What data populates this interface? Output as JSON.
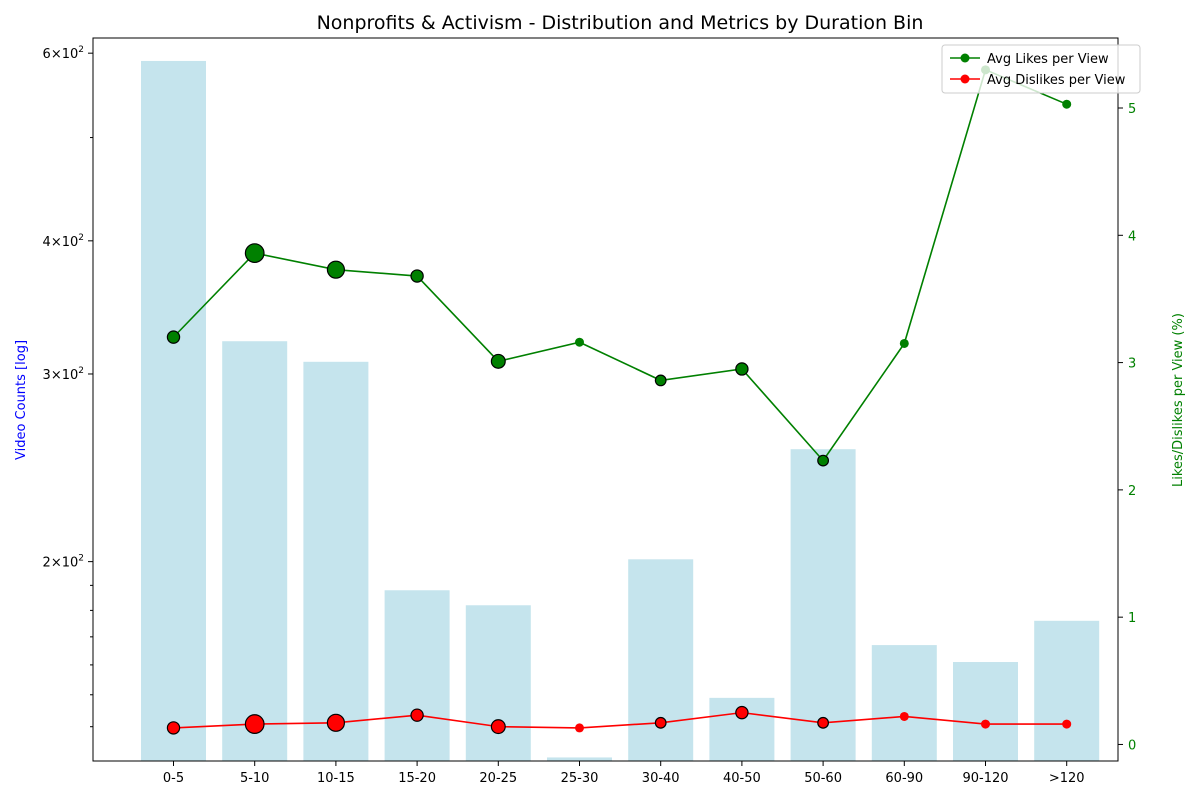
{
  "chart_data": {
    "type": "bar+line",
    "title": "Nonprofits & Activism - Distribution and Metrics by Duration Bin",
    "categories": [
      "0-5",
      "5-10",
      "10-15",
      "15-20",
      "20-25",
      "25-30",
      "30-40",
      "40-50",
      "50-60",
      "60-90",
      "90-120",
      ">120"
    ],
    "bars": {
      "name": "Video Counts",
      "values": [
        590,
        322,
        308,
        188,
        182,
        131,
        201,
        149,
        255,
        167,
        161,
        176
      ],
      "color": "#add8e6",
      "axis": "left",
      "scale": "log"
    },
    "series": [
      {
        "name": "Avg Likes per View",
        "values": [
          3.2,
          3.86,
          3.73,
          3.68,
          3.01,
          3.16,
          2.86,
          2.95,
          2.23,
          3.15,
          5.3,
          5.03
        ],
        "marker_emphasis": [
          1,
          3,
          2.5,
          1,
          1.5,
          0,
          0.5,
          1,
          0.5,
          0,
          0,
          0
        ],
        "color": "#008000",
        "axis": "right"
      },
      {
        "name": "Avg Dislikes per View",
        "values": [
          0.13,
          0.16,
          0.17,
          0.23,
          0.14,
          0.13,
          0.17,
          0.25,
          0.17,
          0.22,
          0.16,
          0.16
        ],
        "marker_emphasis": [
          1,
          3,
          2.5,
          1,
          1.5,
          0,
          0.5,
          1,
          0.5,
          0,
          0,
          0
        ],
        "color": "#ff0000",
        "axis": "right"
      }
    ],
    "ylabel_left": "Video Counts [log]",
    "ylabel_right": "Likes/Dislikes per View (%)",
    "ylim_left": [
      130,
      620
    ],
    "ylim_right": [
      -0.13,
      5.55
    ],
    "yticks_left": [
      {
        "value": 200,
        "base": "2",
        "sup": "2"
      },
      {
        "value": 300,
        "base": "3",
        "sup": "2"
      },
      {
        "value": 400,
        "base": "4",
        "sup": "2"
      },
      {
        "value": 600,
        "base": "6",
        "sup": "2"
      }
    ],
    "yticks_right": [
      "0",
      "1",
      "2",
      "3",
      "4",
      "5"
    ],
    "legend": "top-right",
    "grid": false
  }
}
